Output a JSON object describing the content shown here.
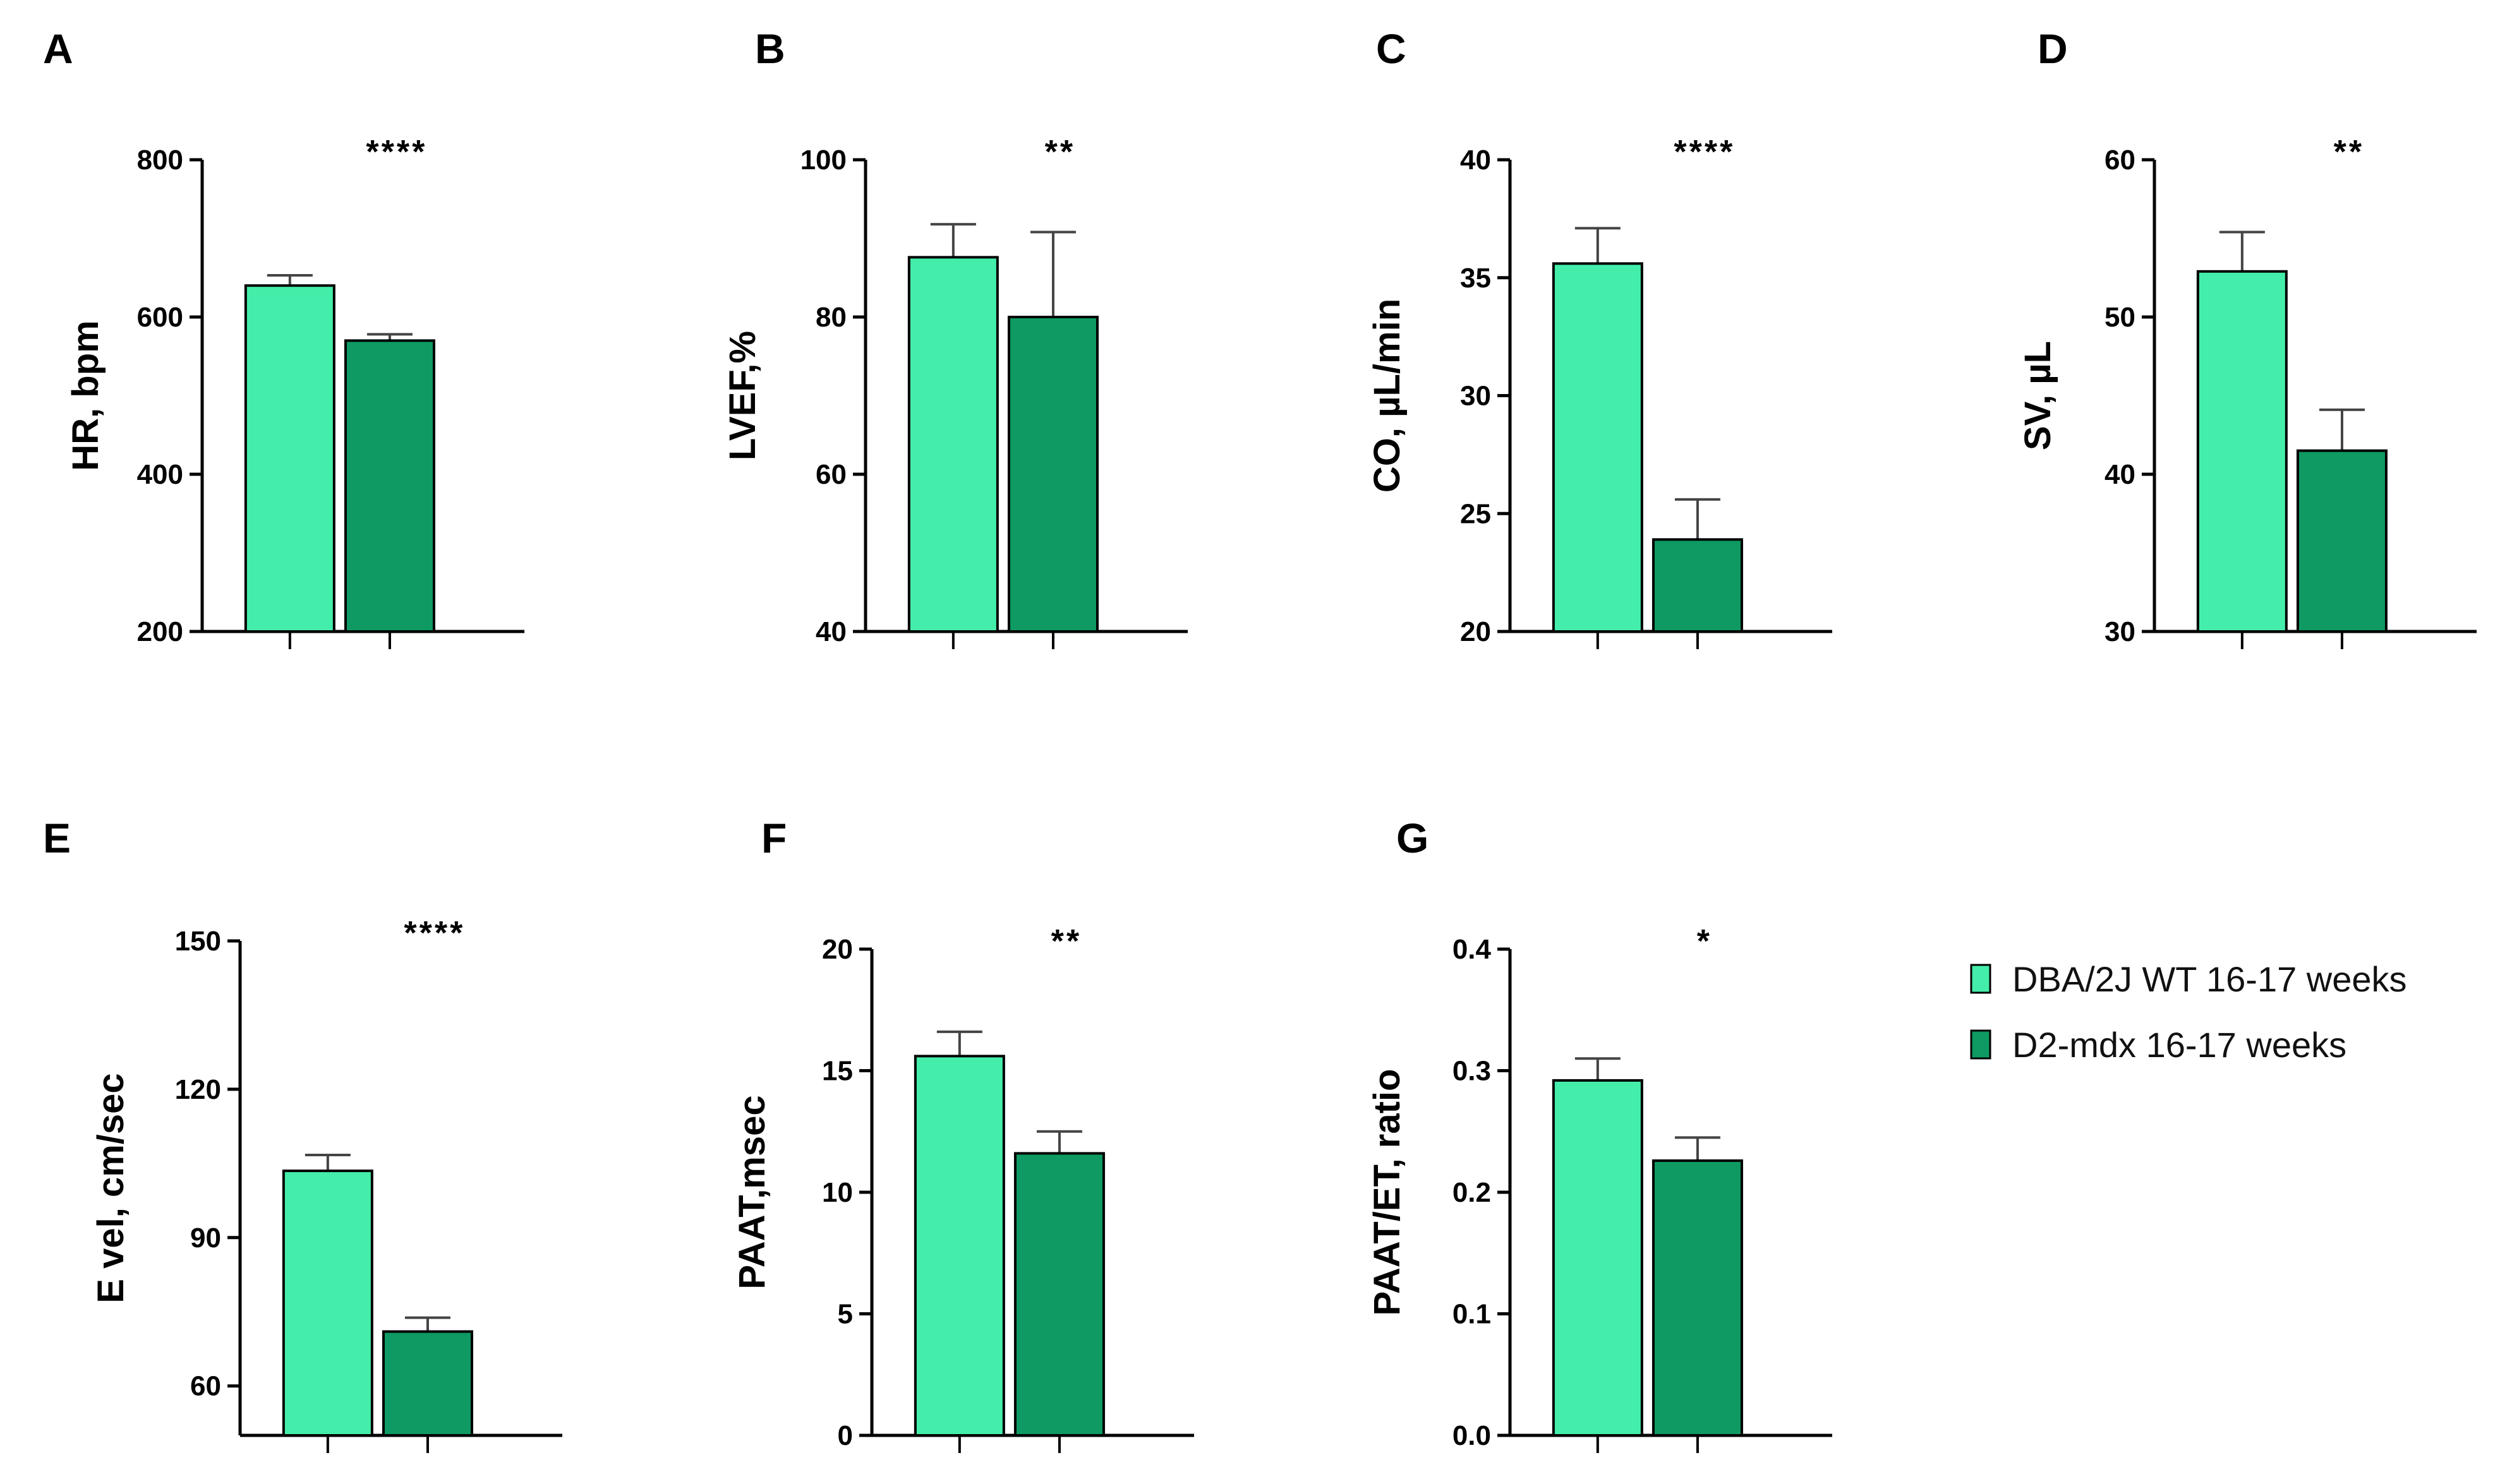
{
  "chart_data": [
    {
      "panel": "A",
      "type": "bar",
      "ylabel": "HR, bpm",
      "ylim": [
        200,
        800
      ],
      "yticks": [
        200,
        400,
        600,
        800
      ],
      "categories": [
        "DBA/2J WT 16-17 weeks",
        "D2-mdx 16-17 weeks"
      ],
      "values": [
        640,
        570
      ],
      "errors": [
        13,
        8
      ],
      "significance": "****"
    },
    {
      "panel": "B",
      "type": "bar",
      "ylabel": "LVEF,%",
      "ylim": [
        40,
        100
      ],
      "yticks": [
        40,
        60,
        80,
        100
      ],
      "categories": [
        "DBA/2J WT 16-17 weeks",
        "D2-mdx 16-17 weeks"
      ],
      "values": [
        87.6,
        80.0
      ],
      "errors": [
        4.2,
        10.8
      ],
      "significance": "**"
    },
    {
      "panel": "C",
      "type": "bar",
      "ylabel": "CO, µL/min",
      "ylim": [
        20,
        40
      ],
      "yticks": [
        20,
        25,
        30,
        35,
        40
      ],
      "categories": [
        "DBA/2J WT 16-17 weeks",
        "D2-mdx 16-17 weeks"
      ],
      "values": [
        35.6,
        23.9
      ],
      "errors": [
        1.5,
        1.7
      ],
      "significance": "****"
    },
    {
      "panel": "D",
      "type": "bar",
      "ylabel": "SV, µL",
      "ylim": [
        30,
        60
      ],
      "yticks": [
        30,
        40,
        50,
        60
      ],
      "categories": [
        "DBA/2J WT 16-17 weeks",
        "D2-mdx 16-17 weeks"
      ],
      "values": [
        52.9,
        41.5
      ],
      "errors": [
        2.5,
        2.6
      ],
      "significance": "**"
    },
    {
      "panel": "E",
      "type": "bar",
      "ylabel": "E vel, cm/sec",
      "ylim": [
        50,
        150
      ],
      "yticks": [
        60,
        90,
        120,
        150
      ],
      "categories": [
        "DBA/2J WT 16-17 weeks",
        "D2-mdx 16-17 weeks"
      ],
      "values": [
        103.5,
        71.0
      ],
      "errors": [
        3.2,
        2.8
      ],
      "significance": "****"
    },
    {
      "panel": "F",
      "type": "bar",
      "ylabel": "PAAT,msec",
      "ylim": [
        0,
        20
      ],
      "yticks": [
        0,
        5,
        10,
        15,
        20
      ],
      "categories": [
        "DBA/2J WT 16-17 weeks",
        "D2-mdx 16-17 weeks"
      ],
      "values": [
        15.6,
        11.6
      ],
      "errors": [
        1.0,
        0.9
      ],
      "significance": "**"
    },
    {
      "panel": "G",
      "type": "bar",
      "ylabel": "PAAT/ET, ratio",
      "ylim": [
        0.0,
        0.4
      ],
      "yticks": [
        "0.0",
        "0.1",
        "0.2",
        "0.3",
        "0.4"
      ],
      "categories": [
        "DBA/2J WT 16-17 weeks",
        "D2-mdx 16-17 weeks"
      ],
      "values": [
        0.292,
        0.226
      ],
      "errors": [
        0.018,
        0.019
      ],
      "significance": "*"
    }
  ],
  "legend": {
    "items": [
      {
        "label": "DBA/2J WT 16-17 weeks",
        "color": "#44EEAA"
      },
      {
        "label": "D2-mdx 16-17 weeks",
        "color": "#0E9A62"
      }
    ]
  },
  "colors": {
    "wt": "#44EEAA",
    "mdx": "#0E9A62",
    "axis": "#000000",
    "error": "#444444"
  }
}
